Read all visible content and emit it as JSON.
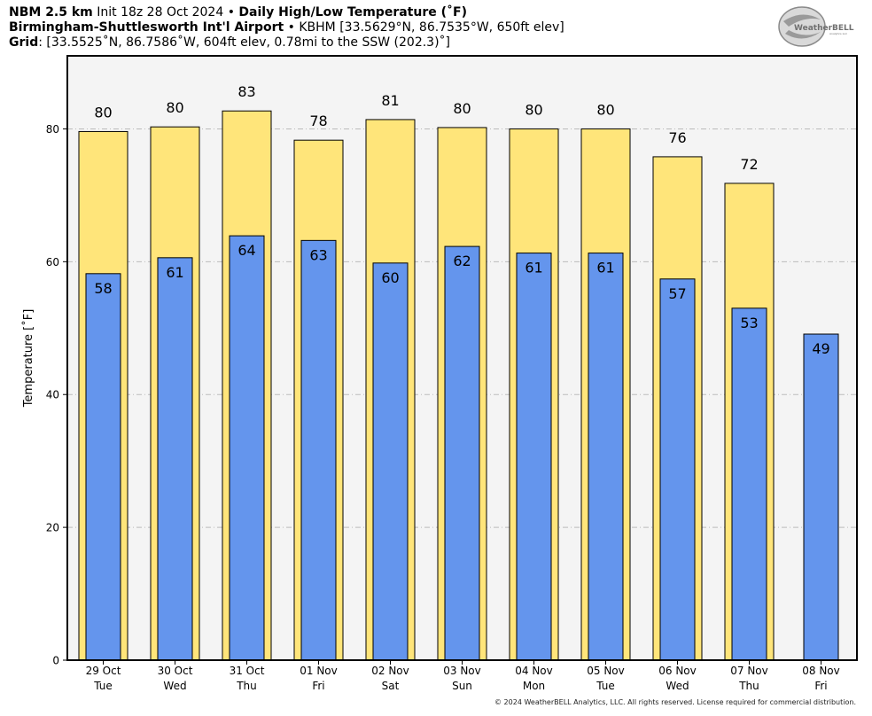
{
  "header": {
    "line1_model": "NBM 2.5 km",
    "line1_init": "Init 18z 28 Oct 2024",
    "line1_product": "Daily High/Low Temperature (˚F)",
    "line2_station": "Birmingham-Shuttlesworth Int'l Airport",
    "line2_details": "KBHM [33.5629°N, 86.7535°W, 650ft elev]",
    "line3_label": "Grid",
    "line3_details": ": [33.5525˚N, 86.7586˚W, 604ft elev, 0.78mi to the SSW (202.3)˚]",
    "separator": "•"
  },
  "logo": {
    "text": "WeatherBELL",
    "subtext": "Analytics LLC"
  },
  "copyright": "© 2024 WeatherBELL Analytics, LLC. All rights reserved. License required for commercial distribution.",
  "colors": {
    "high_bar": "#FFE57A",
    "low_bar": "#6495ED",
    "plot_bg": "#F4F4F4",
    "grid": "#BBBBBB"
  },
  "chart_data": {
    "type": "bar",
    "ylabel": "Temperature [˚F]",
    "ylim": [
      0,
      91
    ],
    "yticks": [
      0,
      20,
      40,
      60,
      80
    ],
    "grid": true,
    "categories": [
      "29 Oct",
      "30 Oct",
      "31 Oct",
      "01 Nov",
      "02 Nov",
      "03 Nov",
      "04 Nov",
      "05 Nov",
      "06 Nov",
      "07 Nov",
      "08 Nov"
    ],
    "days": [
      "Tue",
      "Wed",
      "Thu",
      "Fri",
      "Sat",
      "Sun",
      "Mon",
      "Tue",
      "Wed",
      "Thu",
      "Fri"
    ],
    "series": [
      {
        "key": "high",
        "values": [
          79.6,
          80.3,
          82.7,
          78.3,
          81.4,
          80.2,
          80.0,
          80.0,
          75.8,
          71.8,
          null
        ],
        "labels": [
          "80",
          "80",
          "83",
          "78",
          "81",
          "80",
          "80",
          "80",
          "76",
          "72",
          ""
        ]
      },
      {
        "key": "low",
        "values": [
          58.2,
          60.6,
          63.9,
          63.2,
          59.8,
          62.3,
          61.3,
          61.3,
          57.4,
          53.0,
          49.1
        ],
        "labels": [
          "58",
          "61",
          "64",
          "63",
          "60",
          "62",
          "61",
          "61",
          "57",
          "53",
          "49"
        ]
      }
    ]
  }
}
